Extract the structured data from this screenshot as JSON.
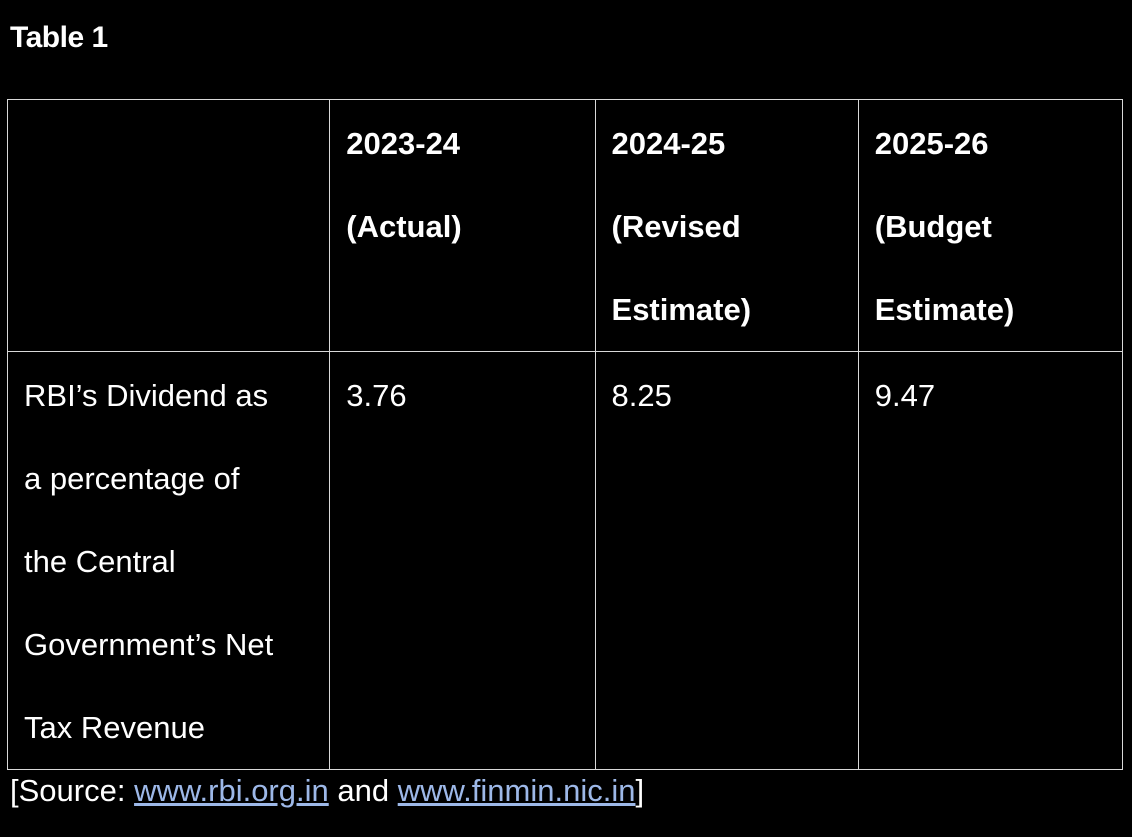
{
  "title": "Table 1",
  "table": {
    "headers": [
      {
        "lines": []
      },
      {
        "lines": [
          "2023-24",
          "(Actual)"
        ]
      },
      {
        "lines": [
          "2024-25",
          "(Revised",
          "Estimate)"
        ]
      },
      {
        "lines": [
          "2025-26",
          "(Budget",
          "Estimate)"
        ]
      }
    ],
    "row": {
      "label_lines": [
        "RBI’s Dividend as",
        "a percentage of",
        "the Central",
        "Government’s Net",
        "Tax Revenue"
      ],
      "values": [
        "3.76",
        "8.25",
        "9.47"
      ]
    }
  },
  "source": {
    "prefix": "[Source: ",
    "link1": "www.rbi.org.in",
    "middle": " and ",
    "link2": "www.finmin.nic.in",
    "suffix": "]"
  },
  "colors": {
    "background": "#000000",
    "text": "#ffffff",
    "border": "#d9d9d9",
    "link": "#9db8e8"
  }
}
